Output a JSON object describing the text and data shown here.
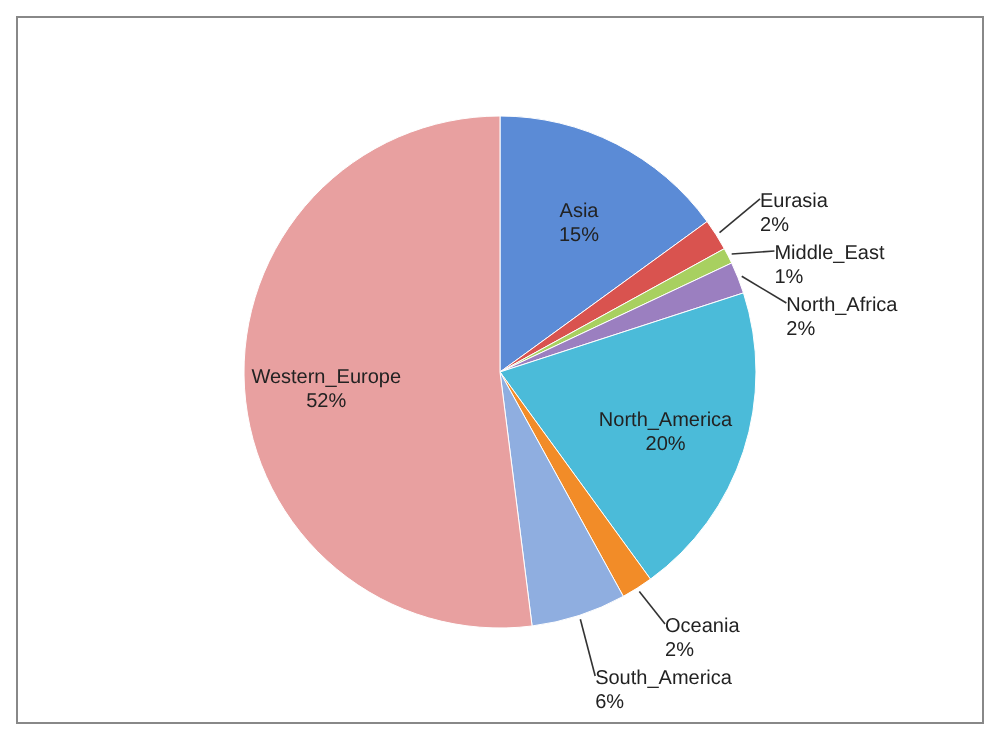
{
  "chart_data": {
    "type": "pie",
    "categories": [
      "Asia",
      "Eurasia",
      "Middle_East",
      "North_Africa",
      "North_America",
      "Oceania",
      "South_America",
      "Western_Europe"
    ],
    "values": [
      15,
      2,
      1,
      2,
      20,
      2,
      6,
      52
    ],
    "colors": [
      "#5b8bd6",
      "#d9534f",
      "#a8d060",
      "#9b7fc0",
      "#4bbbd9",
      "#f28c28",
      "#8faee0",
      "#e8a0a0"
    ],
    "value_labels": [
      "15%",
      "2%",
      "1%",
      "2%",
      "20%",
      "2%",
      "6%",
      "52%"
    ]
  }
}
